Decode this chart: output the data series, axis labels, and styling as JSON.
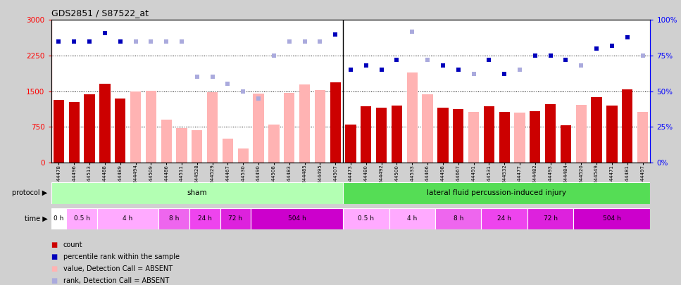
{
  "title": "GDS2851 / S87522_at",
  "samples": [
    "GSM44478",
    "GSM44496",
    "GSM44513",
    "GSM44488",
    "GSM44489",
    "GSM44494",
    "GSM44509",
    "GSM44486",
    "GSM44511",
    "GSM44528",
    "GSM44529",
    "GSM44467",
    "GSM44530",
    "GSM44490",
    "GSM44508",
    "GSM44483",
    "GSM44485",
    "GSM44495",
    "GSM44507",
    "GSM44473",
    "GSM44480",
    "GSM44492",
    "GSM44500",
    "GSM44533",
    "GSM44466",
    "GSM44498",
    "GSM44667",
    "GSM44491",
    "GSM44531",
    "GSM44532",
    "GSM44477",
    "GSM44482",
    "GSM44493",
    "GSM44484",
    "GSM44520",
    "GSM44549",
    "GSM44471",
    "GSM44481",
    "GSM44497"
  ],
  "values": [
    1320,
    1270,
    1430,
    1650,
    1340,
    1500,
    1510,
    900,
    730,
    680,
    1480,
    500,
    290,
    1450,
    800,
    1470,
    1640,
    1530,
    1680,
    800,
    1180,
    1160,
    1200,
    1900,
    1430,
    1150,
    1130,
    1060,
    1190,
    1060,
    1050,
    1080,
    1230,
    780,
    1210,
    1380,
    1200,
    1540,
    1060
  ],
  "absent_flags": [
    false,
    false,
    false,
    false,
    false,
    true,
    true,
    true,
    true,
    true,
    true,
    true,
    true,
    true,
    true,
    true,
    true,
    true,
    false,
    false,
    false,
    false,
    false,
    true,
    true,
    false,
    false,
    true,
    false,
    false,
    true,
    false,
    false,
    false,
    true,
    false,
    false,
    false,
    true
  ],
  "ranks_pct": [
    85,
    85,
    85,
    91,
    85,
    85,
    85,
    85,
    85,
    60,
    60,
    55,
    50,
    45,
    75,
    85,
    85,
    85,
    90,
    65,
    68,
    65,
    72,
    92,
    72,
    68,
    65,
    62,
    72,
    62,
    65,
    75,
    75,
    72,
    68,
    80,
    82,
    88,
    75
  ],
  "protocol_groups": [
    {
      "label": "sham",
      "start": 0,
      "end": 18,
      "color": "#b3ffb3"
    },
    {
      "label": "lateral fluid percussion-induced injury",
      "start": 19,
      "end": 38,
      "color": "#55dd55"
    }
  ],
  "time_groups": [
    {
      "label": "0 h",
      "start": 0,
      "end": 0,
      "color": "#ffffff"
    },
    {
      "label": "0.5 h",
      "start": 1,
      "end": 2,
      "color": "#ffaaff"
    },
    {
      "label": "4 h",
      "start": 3,
      "end": 6,
      "color": "#ffaaff"
    },
    {
      "label": "8 h",
      "start": 7,
      "end": 8,
      "color": "#ee66ee"
    },
    {
      "label": "24 h",
      "start": 9,
      "end": 10,
      "color": "#ee44ee"
    },
    {
      "label": "72 h",
      "start": 11,
      "end": 12,
      "color": "#dd22dd"
    },
    {
      "label": "504 h",
      "start": 13,
      "end": 18,
      "color": "#cc00cc"
    },
    {
      "label": "0.5 h",
      "start": 19,
      "end": 21,
      "color": "#ffaaff"
    },
    {
      "label": "4 h",
      "start": 22,
      "end": 24,
      "color": "#ffaaff"
    },
    {
      "label": "8 h",
      "start": 25,
      "end": 27,
      "color": "#ee66ee"
    },
    {
      "label": "24 h",
      "start": 28,
      "end": 30,
      "color": "#ee44ee"
    },
    {
      "label": "72 h",
      "start": 31,
      "end": 33,
      "color": "#dd22dd"
    },
    {
      "label": "504 h",
      "start": 34,
      "end": 38,
      "color": "#cc00cc"
    }
  ],
  "ylim": [
    0,
    3000
  ],
  "yticks": [
    0,
    750,
    1500,
    2250,
    3000
  ],
  "y2ticks": [
    0,
    25,
    50,
    75,
    100
  ],
  "bar_color_present": "#cc0000",
  "bar_color_absent": "#ffb3b3",
  "dot_color_present": "#0000bb",
  "dot_color_absent": "#aaaadd",
  "bg_color": "#d0d0d0",
  "plot_bg": "#ffffff",
  "legend_items": [
    {
      "color": "#cc0000",
      "label": "count"
    },
    {
      "color": "#0000bb",
      "label": "percentile rank within the sample"
    },
    {
      "color": "#ffb3b3",
      "label": "value, Detection Call = ABSENT"
    },
    {
      "color": "#aaaadd",
      "label": "rank, Detection Call = ABSENT"
    }
  ]
}
